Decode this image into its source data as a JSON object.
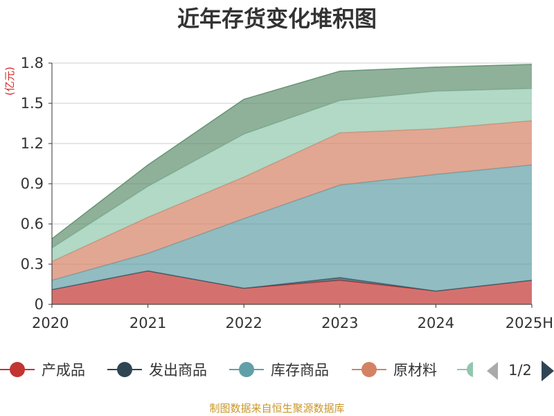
{
  "chart_data": {
    "type": "area",
    "stacked": true,
    "title": "近年存货变化堆积图",
    "unit_label": "(亿元)",
    "categories": [
      "2020",
      "2021",
      "2022",
      "2023",
      "2024",
      "2025H"
    ],
    "ylim": [
      0,
      1.8
    ],
    "yticks": [
      0,
      0.3,
      0.6,
      0.9,
      1.2,
      1.5,
      1.8
    ],
    "ytick_labels": [
      "0",
      "0.3",
      "0.6",
      "0.9",
      "1.2",
      "1.5",
      "1.8"
    ],
    "grid": true,
    "series": [
      {
        "name": "产成品",
        "color": "#c23531",
        "values": [
          0.11,
          0.25,
          0.12,
          0.18,
          0.1,
          0.18
        ]
      },
      {
        "name": "发出商品",
        "color": "#2f4554",
        "values": [
          0.0,
          0.0,
          0.0,
          0.02,
          0.0,
          0.0
        ]
      },
      {
        "name": "库存商品",
        "color": "#61a0a8",
        "values": [
          0.07,
          0.13,
          0.52,
          0.69,
          0.87,
          0.86
        ]
      },
      {
        "name": "原材料",
        "color": "#d48265",
        "values": [
          0.14,
          0.27,
          0.31,
          0.39,
          0.34,
          0.33
        ]
      },
      {
        "name": "",
        "color": "#91c7ae",
        "values": [
          0.1,
          0.23,
          0.32,
          0.24,
          0.28,
          0.24
        ]
      },
      {
        "name": "",
        "color": "#5f8f6e",
        "values": [
          0.07,
          0.16,
          0.26,
          0.22,
          0.18,
          0.18
        ]
      }
    ],
    "legend": {
      "position": "bottom",
      "visible_items": [
        "产成品",
        "发出商品",
        "库存商品",
        "原材料"
      ],
      "page_indicator": "1/2"
    },
    "source_note": "制图数据来自恒生聚源数据库"
  }
}
